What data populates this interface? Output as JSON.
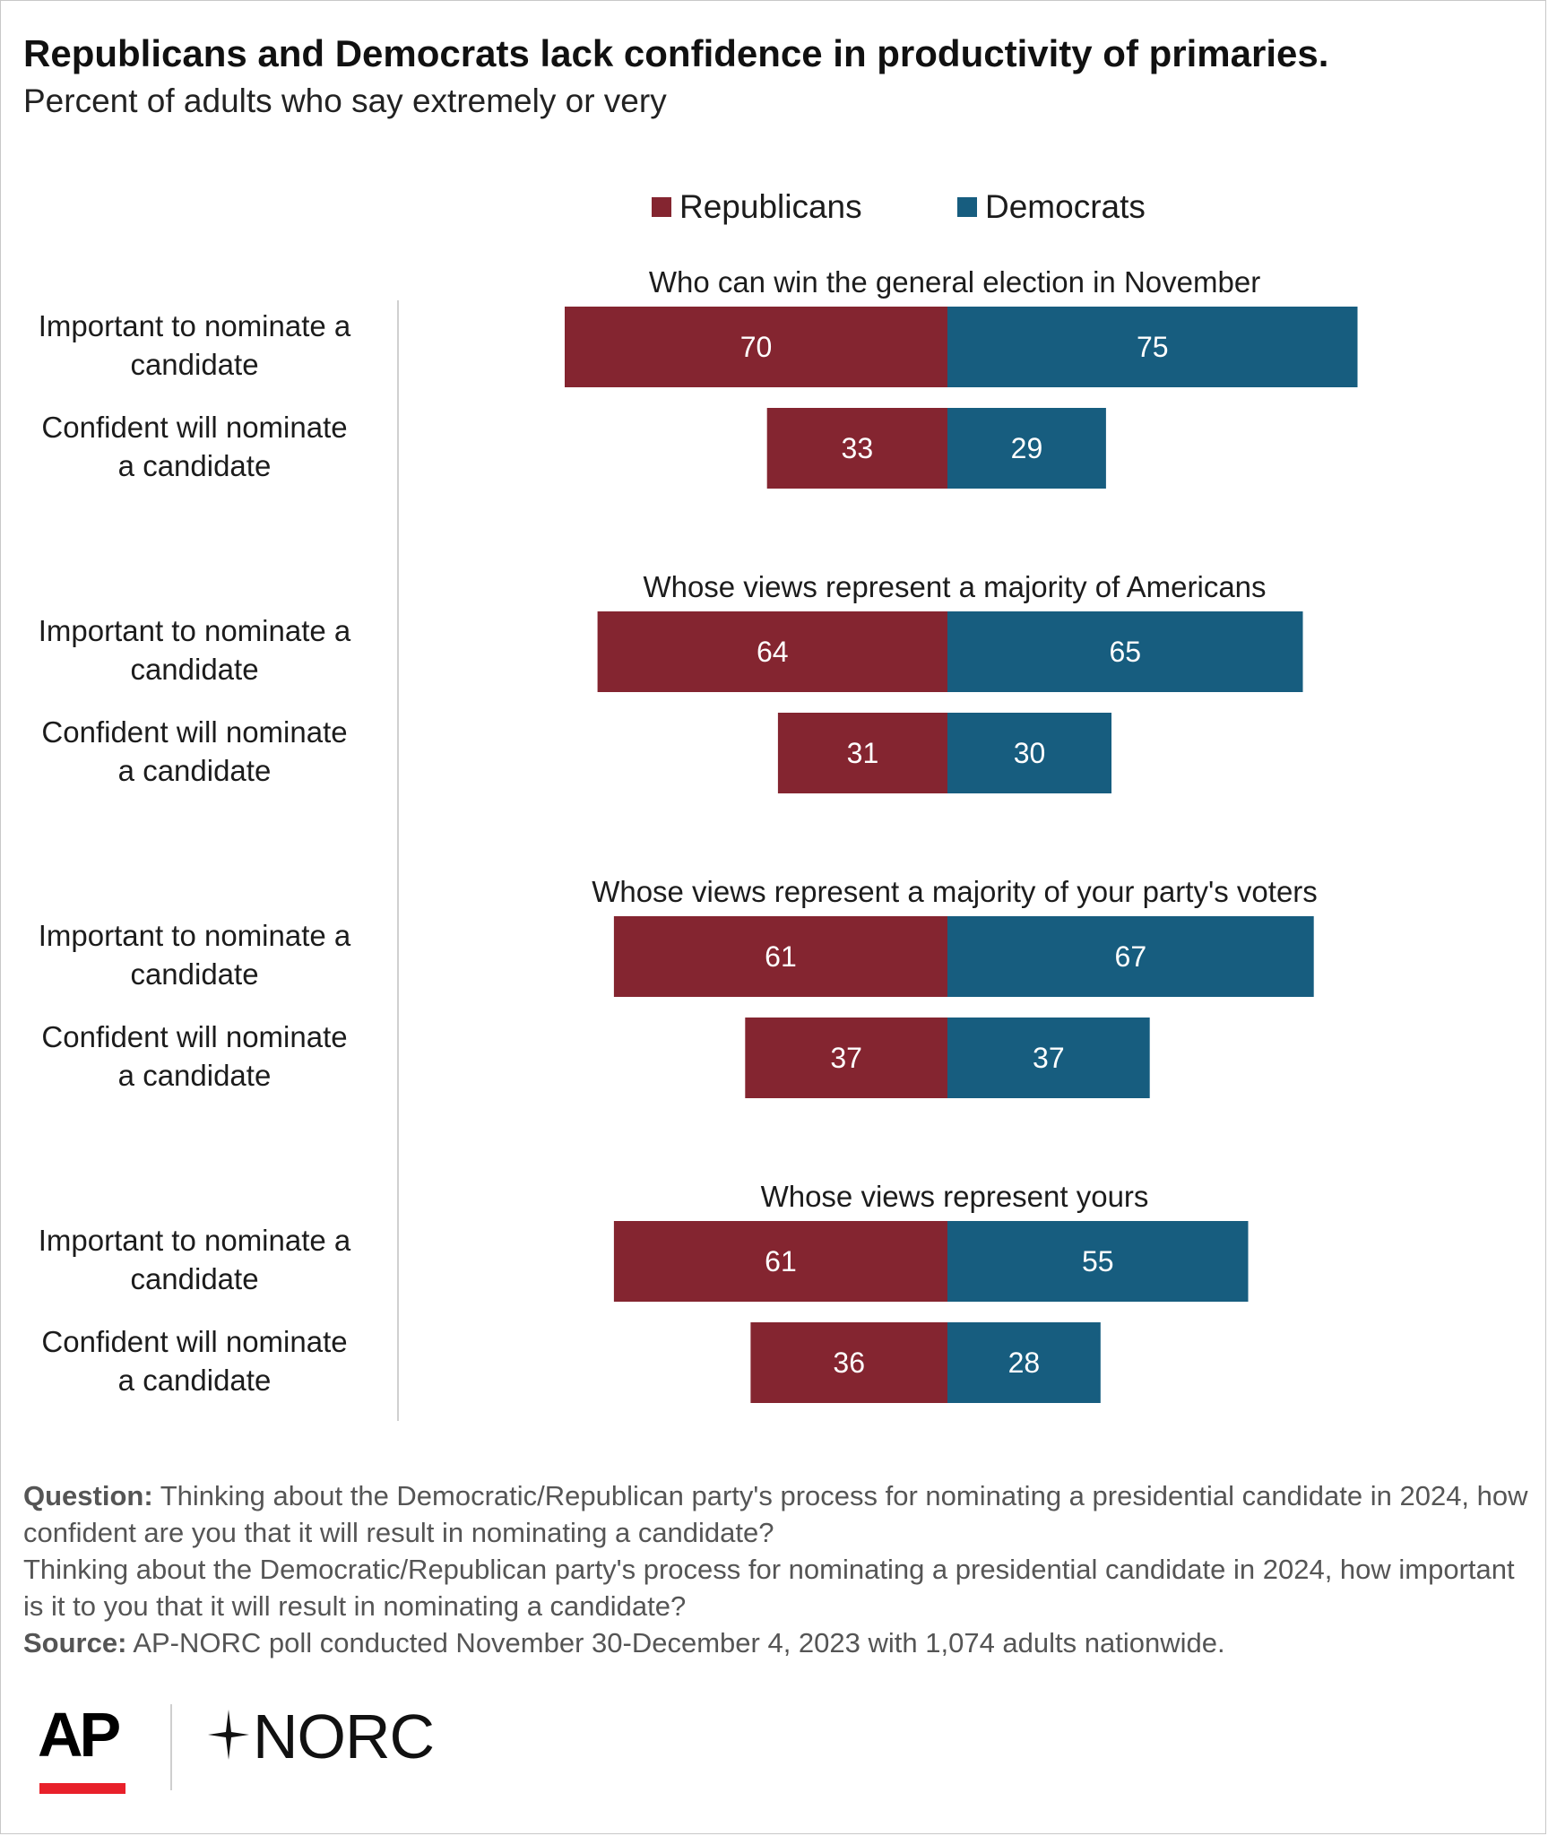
{
  "header": {
    "title": "Republicans and Democrats lack confidence in productivity of primaries.",
    "subtitle": "Percent of adults who say extremely or very"
  },
  "legend": {
    "republicans": "Republicans",
    "democrats": "Democrats"
  },
  "colors": {
    "republicans": "#842530",
    "democrats": "#175d7f",
    "axis_line": "#d0d0d0"
  },
  "chart_data": {
    "type": "bar",
    "orientation": "horizontal-diverging",
    "title": "Republicans and Democrats lack confidence in productivity of primaries.",
    "subtitle": "Percent of adults who say extremely or very",
    "legend_position": "top-center",
    "grid": false,
    "row_labels": [
      "Important to nominate a candidate",
      "Confident will nominate a candidate"
    ],
    "groups": [
      {
        "title": "Who can win the general election in November",
        "rows": [
          {
            "label_line1": "Important to nominate a",
            "label_line2": "candidate",
            "republicans": 70,
            "democrats": 75
          },
          {
            "label_line1": "Confident will nominate",
            "label_line2": "a candidate",
            "republicans": 33,
            "democrats": 29
          }
        ]
      },
      {
        "title": "Whose views represent a majority of Americans",
        "rows": [
          {
            "label_line1": "Important to nominate a",
            "label_line2": "candidate",
            "republicans": 64,
            "democrats": 65
          },
          {
            "label_line1": "Confident will nominate",
            "label_line2": "a candidate",
            "republicans": 31,
            "democrats": 30
          }
        ]
      },
      {
        "title": "Whose views represent a majority of your party's voters",
        "rows": [
          {
            "label_line1": "Important to nominate a",
            "label_line2": "candidate",
            "republicans": 61,
            "democrats": 67
          },
          {
            "label_line1": "Confident will nominate",
            "label_line2": "a candidate",
            "republicans": 37,
            "democrats": 37
          }
        ]
      },
      {
        "title": "Whose views represent yours",
        "rows": [
          {
            "label_line1": "Important to nominate a",
            "label_line2": "candidate",
            "republicans": 61,
            "democrats": 55
          },
          {
            "label_line1": "Confident will nominate",
            "label_line2": "a candidate",
            "republicans": 36,
            "democrats": 28
          }
        ]
      }
    ],
    "series": [
      {
        "name": "Republicans",
        "direction": "left"
      },
      {
        "name": "Democrats",
        "direction": "right"
      }
    ]
  },
  "notes": {
    "question_label": "Question:",
    "question_text_1": "Thinking about the Democratic/Republican party's process for nominating a presidential candidate in 2024, how confident are you that it will result in nominating a candidate?",
    "question_text_2": "Thinking about the Democratic/Republican party's process for nominating a presidential candidate in 2024, how important is it to you that it will result in nominating a candidate?",
    "source_label": "Source:",
    "source_text": "AP-NORC poll conducted November 30-December 4, 2023 with 1,074 adults nationwide."
  },
  "logos": {
    "ap": "AP",
    "norc": "NORC"
  }
}
